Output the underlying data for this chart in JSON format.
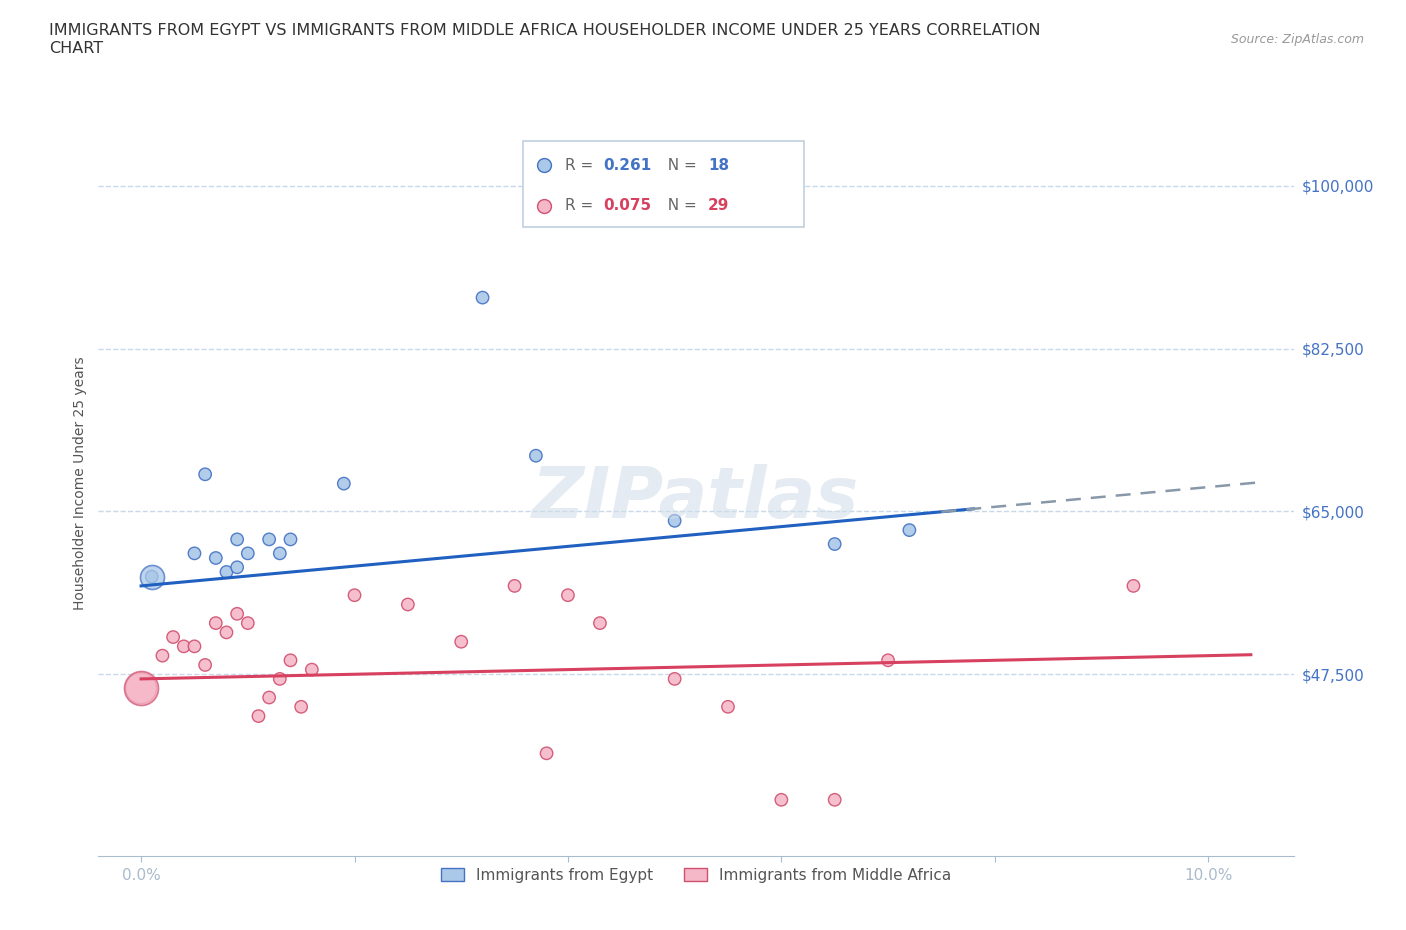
{
  "title": "IMMIGRANTS FROM EGYPT VS IMMIGRANTS FROM MIDDLE AFRICA HOUSEHOLDER INCOME UNDER 25 YEARS CORRELATION\nCHART",
  "source": "Source: ZipAtlas.com",
  "ylabel": "Householder Income Under 25 years",
  "xlabel_ticks": [
    0.0,
    0.02,
    0.04,
    0.06,
    0.08,
    0.1
  ],
  "xlabel_labels": [
    "0.0%",
    "",
    "",
    "",
    "",
    "10.0%"
  ],
  "yticks": [
    47500,
    65000,
    82500,
    100000
  ],
  "ytick_labels": [
    "$47,500",
    "$65,000",
    "$82,500",
    "$100,000"
  ],
  "xlim": [
    -0.004,
    0.108
  ],
  "ylim": [
    28000,
    108000
  ],
  "egypt_x": [
    0.001,
    0.005,
    0.006,
    0.007,
    0.008,
    0.009,
    0.009,
    0.01,
    0.012,
    0.013,
    0.014,
    0.019,
    0.032,
    0.037,
    0.05,
    0.065,
    0.072
  ],
  "egypt_y": [
    58000,
    60500,
    69000,
    60000,
    58500,
    62000,
    59000,
    60500,
    62000,
    60500,
    62000,
    68000,
    88000,
    71000,
    64000,
    61500,
    63000
  ],
  "egypt_sizes": [
    80,
    80,
    80,
    80,
    80,
    80,
    80,
    80,
    80,
    80,
    80,
    80,
    80,
    80,
    80,
    80,
    80
  ],
  "middle_africa_x": [
    0.0,
    0.002,
    0.003,
    0.004,
    0.005,
    0.006,
    0.007,
    0.008,
    0.009,
    0.01,
    0.011,
    0.012,
    0.013,
    0.014,
    0.015,
    0.016,
    0.02,
    0.025,
    0.03,
    0.035,
    0.038,
    0.04,
    0.043,
    0.05,
    0.055,
    0.06,
    0.065,
    0.07,
    0.093
  ],
  "middle_africa_y": [
    46000,
    49500,
    51500,
    50500,
    50500,
    48500,
    53000,
    52000,
    54000,
    53000,
    43000,
    45000,
    47000,
    49000,
    44000,
    48000,
    56000,
    55000,
    51000,
    57000,
    39000,
    56000,
    53000,
    47000,
    44000,
    34000,
    34000,
    49000,
    57000
  ],
  "middle_africa_sizes": [
    500,
    80,
    80,
    80,
    80,
    80,
    80,
    80,
    80,
    80,
    80,
    80,
    80,
    80,
    80,
    80,
    80,
    80,
    80,
    80,
    80,
    80,
    80,
    80,
    80,
    80,
    80,
    80,
    80
  ],
  "egypt_large_x": [
    0.001
  ],
  "egypt_large_y": [
    58000
  ],
  "egypt_large_size": [
    300
  ],
  "egypt_color": "#aac8e8",
  "egypt_edge_color": "#4472c4",
  "middle_africa_color": "#f5b8c8",
  "middle_africa_edge_color": "#d05070",
  "egypt_line_color": "#2060c0",
  "egypt_dash_color": "#8898a8",
  "middle_africa_line_color": "#d84060",
  "r_egypt": "0.261",
  "n_egypt": "18",
  "r_middle_africa": "0.075",
  "n_middle_africa": "29",
  "legend_label_egypt": "Immigrants from Egypt",
  "legend_label_middle_africa": "Immigrants from Middle Africa",
  "watermark": "ZIPatlas",
  "grid_color": "#c8daea",
  "background_color": "#ffffff",
  "title_fontsize": 11.5,
  "axis_label_fontsize": 10,
  "tick_label_fontsize": 11
}
